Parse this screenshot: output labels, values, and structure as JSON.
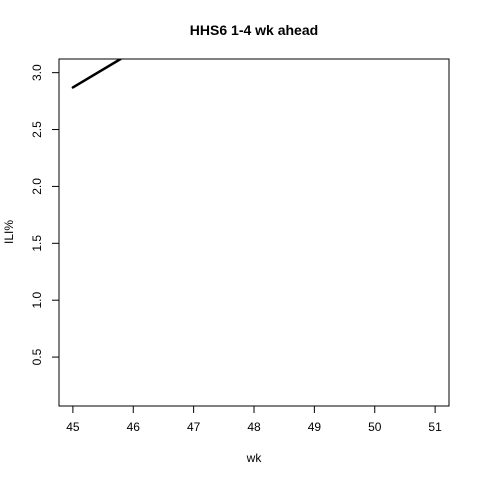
{
  "chart_data": {
    "type": "line",
    "title": "HHS6 1-4 wk ahead",
    "xlabel": "wk",
    "ylabel": "ILI%",
    "xlim": [
      44.77,
      51.23
    ],
    "ylim": [
      0.07,
      3.12
    ],
    "xticks": [
      45,
      46,
      47,
      48,
      49,
      50,
      51
    ],
    "yticks": [
      0.5,
      1.0,
      1.5,
      2.0,
      2.5,
      3.0
    ],
    "ytick_labels": [
      "0.5",
      "1.0",
      "1.5",
      "2.0",
      "2.5",
      "3.0"
    ],
    "grid": false,
    "legend": "none",
    "series": [
      {
        "color": "#000000",
        "x": [
          45,
          45.79
        ],
        "y": [
          2.87,
          3.12
        ]
      }
    ]
  }
}
